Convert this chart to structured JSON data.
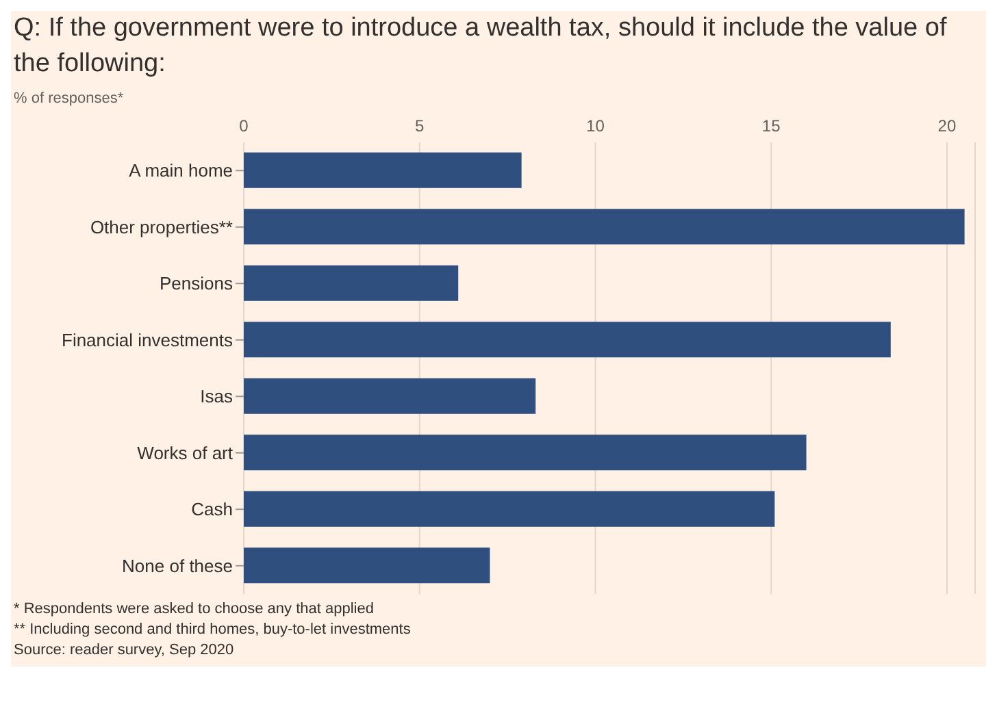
{
  "chart_data": {
    "type": "bar",
    "orientation": "horizontal",
    "title": "Q: If the government were to introduce a wealth tax, should it include the value of the following:",
    "subtitle": "% of responses*",
    "categories": [
      "A main home",
      "Other properties**",
      "Pensions",
      "Financial investments",
      "Isas",
      "Works of art",
      "Cash",
      "None of these"
    ],
    "values": [
      7.9,
      20.5,
      6.1,
      18.4,
      8.3,
      16.0,
      15.1,
      7.0
    ],
    "color": "#2f4f7f",
    "xlim": [
      0,
      20.8
    ],
    "xticks": [
      0,
      5,
      10,
      15,
      20
    ],
    "grid": "x",
    "annotations": [
      "* Respondents were asked to choose any that applied",
      "** Including second and third homes, buy-to-let investments",
      "Source: reader survey, Sep 2020"
    ]
  }
}
